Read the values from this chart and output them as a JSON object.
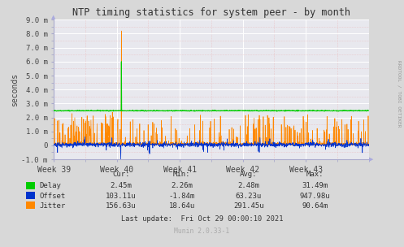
{
  "title": "NTP timing statistics for system peer - by month",
  "ylabel": "seconds",
  "right_label": "RRDTOOL / TOBI OETIKER",
  "bg_color": "#d8d8d8",
  "plot_bg_color": "#e8e8ee",
  "grid_color_major": "#ffffff",
  "grid_color_minor": "#e8b0b0",
  "ylim": [
    -0.001,
    0.009
  ],
  "yticks": [
    -0.001,
    0.0,
    0.001,
    0.002,
    0.003,
    0.004,
    0.005,
    0.006,
    0.007,
    0.008,
    0.009
  ],
  "ytick_labels": [
    "-1.0 m",
    "0",
    "1.0 m",
    "2.0 m",
    "3.0 m",
    "4.0 m",
    "5.0 m",
    "6.0 m",
    "7.0 m",
    "8.0 m",
    "9.0 m"
  ],
  "xtick_positions": [
    0.0,
    0.2,
    0.4,
    0.6,
    0.8
  ],
  "xtick_labels": [
    "Week 39",
    "Week 40",
    "Week 41",
    "Week 42",
    "Week 43"
  ],
  "delay_color": "#00cc00",
  "offset_color": "#0033cc",
  "jitter_color": "#ff8800",
  "delay_base": 0.00248,
  "munin_text": "Munin 2.0.33-1",
  "stats_headers": [
    "Cur:",
    "Min:",
    "Avg:",
    "Max:"
  ],
  "stats_rows": [
    [
      "2.45m",
      "2.26m",
      "2.48m",
      "31.49m"
    ],
    [
      "103.11u",
      "-1.84m",
      "63.23u",
      "947.98u"
    ],
    [
      "156.63u",
      "18.64u",
      "291.45u",
      "90.64m"
    ]
  ],
  "legend_labels": [
    "Delay",
    "Offset",
    "Jitter"
  ],
  "legend_colors": [
    "#00cc00",
    "#0033cc",
    "#ff8800"
  ],
  "last_update": "Last update:  Fri Oct 29 00:00:10 2021"
}
